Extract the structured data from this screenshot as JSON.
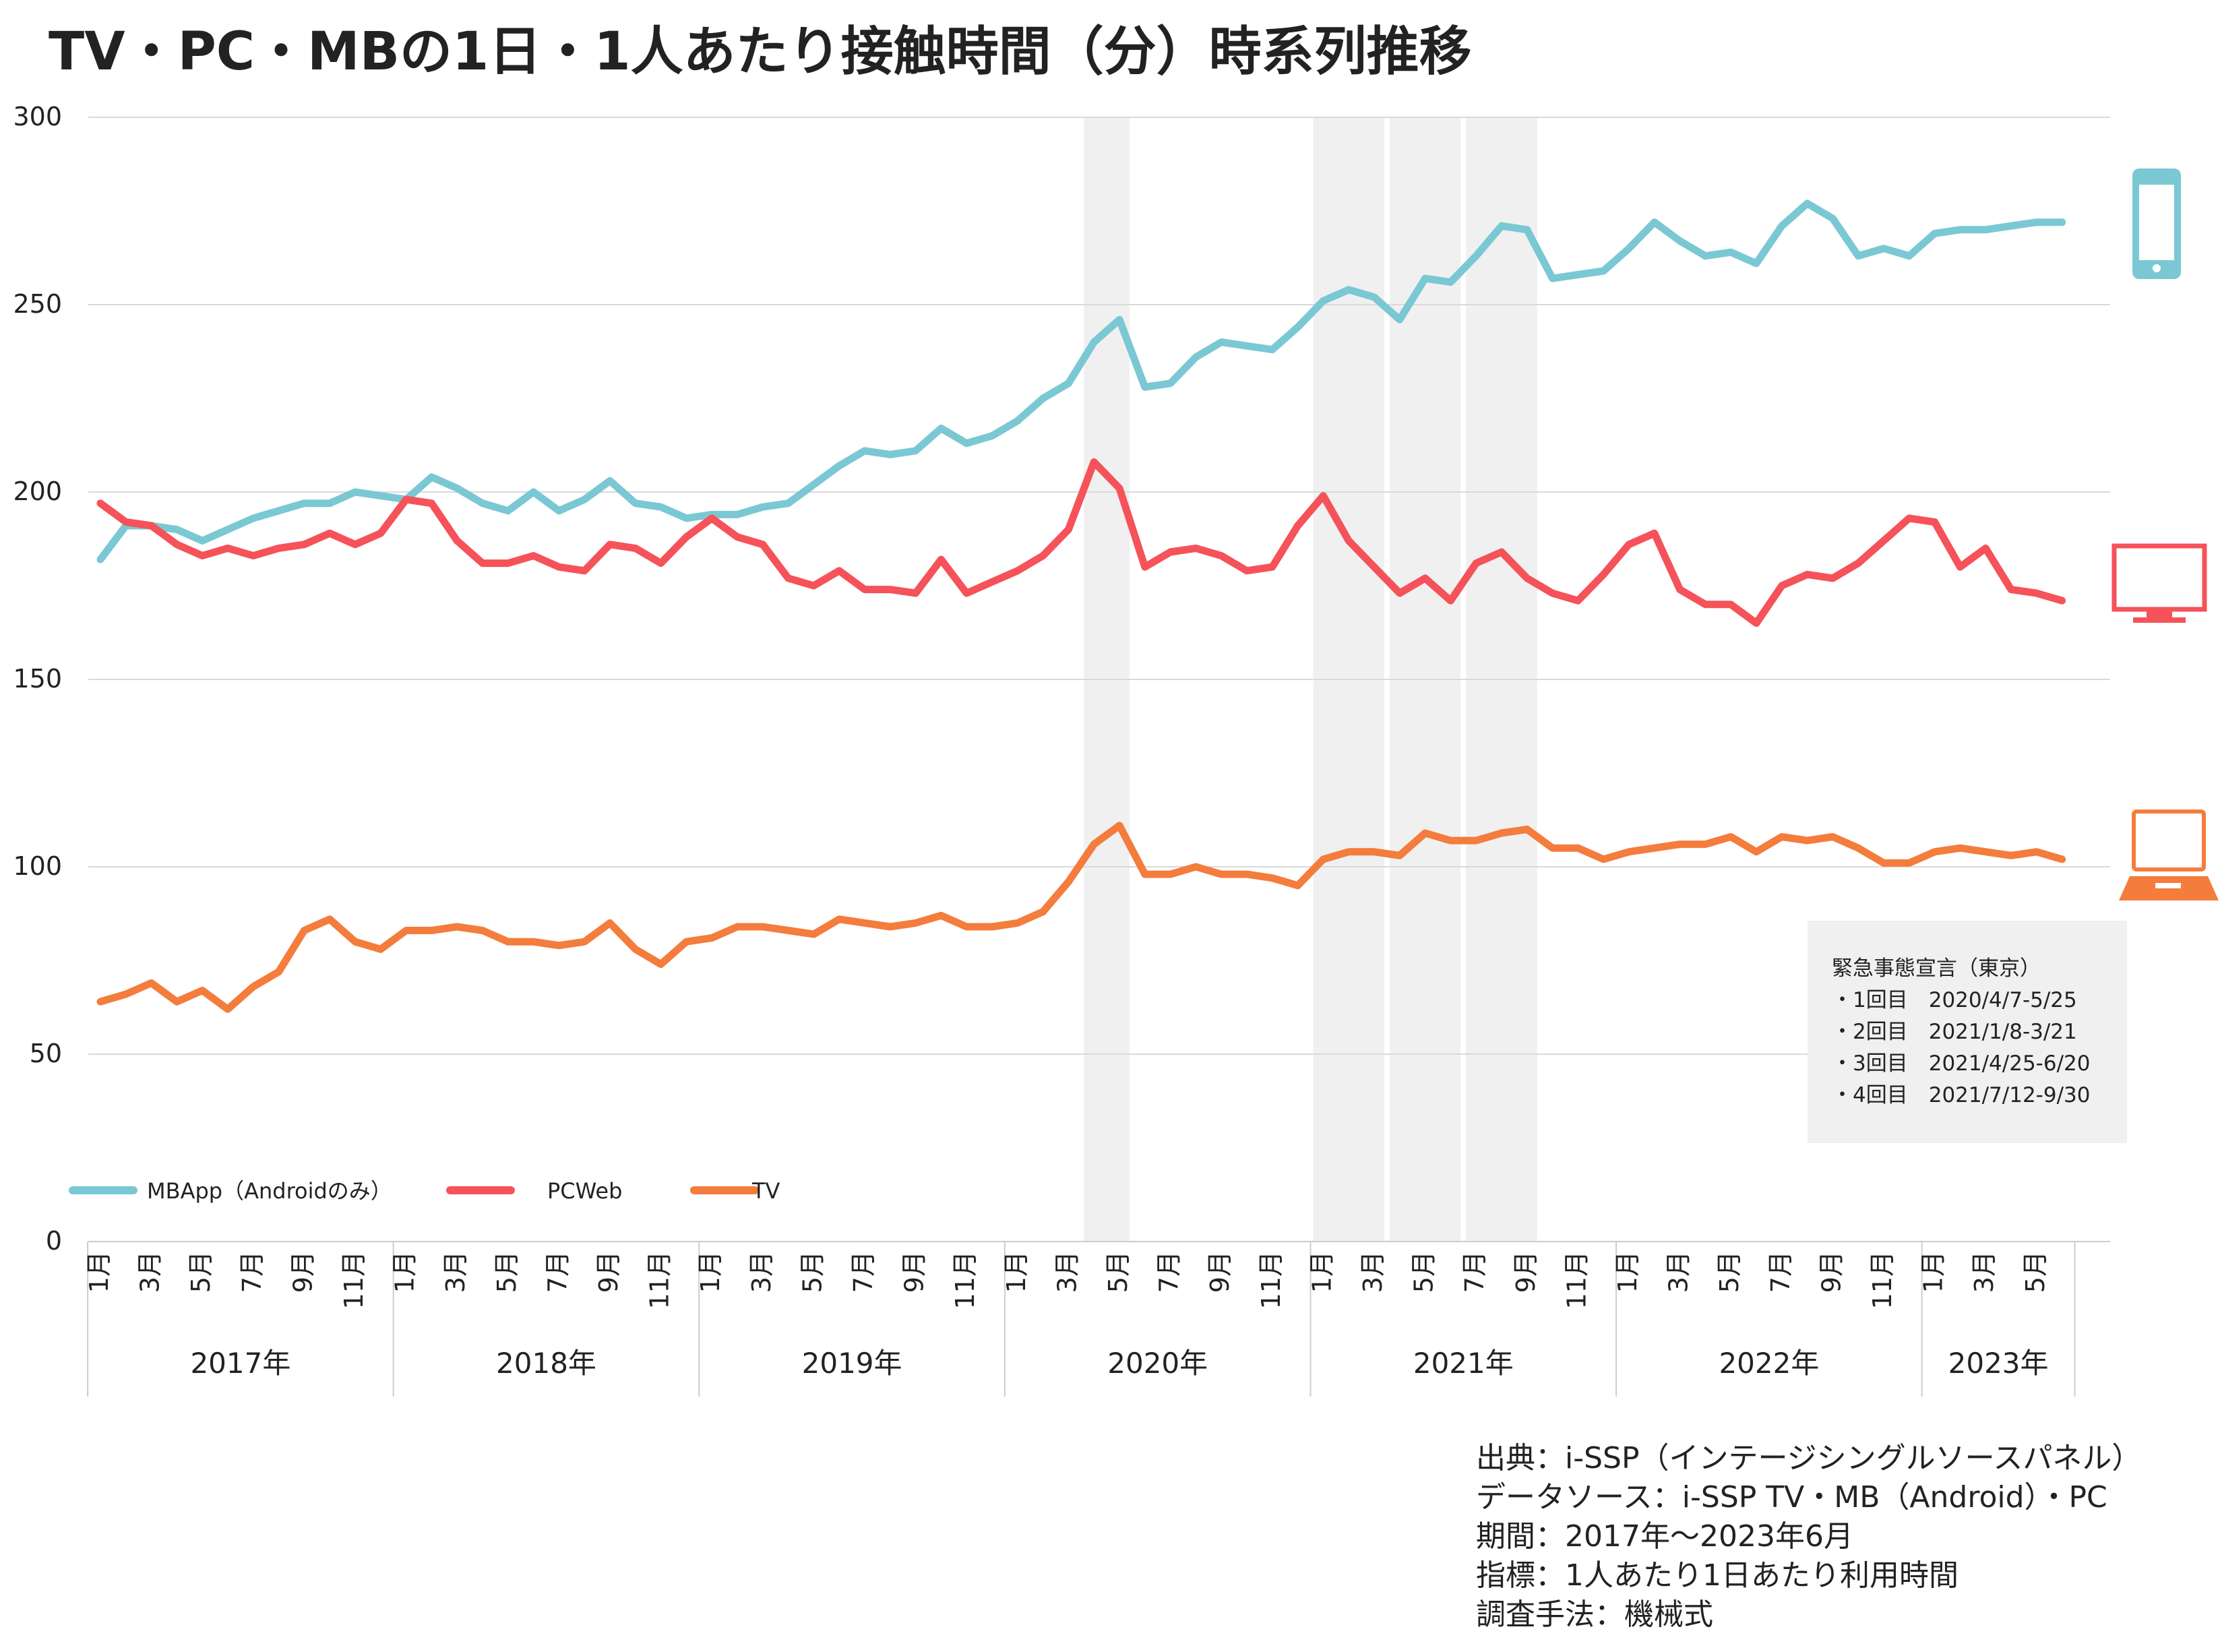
{
  "title": "TV・PC・MBの1日・1人あたり接触時間（分）時系列推移",
  "colors": {
    "mb": "#7ac8d4",
    "pc": "#f5525a",
    "tv": "#f47c3c",
    "shade": "#f0f0f0",
    "grid": "#d9d9d9"
  },
  "icons": {
    "mb": "smartphone-icon",
    "pc": "desktop-monitor-icon",
    "tv": "laptop-icon"
  },
  "emergency": {
    "title": "緊急事態宣言（東京）",
    "items": [
      "・1回目　2020/4/7-5/25",
      "・2回目　2021/1/8-3/21",
      "・3回目　2021/4/25-6/20",
      "・4回目　2021/7/12-9/30"
    ]
  },
  "source_notes": [
    "出典：i-SSP（インテージシングルソースパネル）",
    "データソース：i-SSP  TV・MB（Android）・PC",
    "期間：2017年～2023年6月",
    "指標：1人あたり1日あたり利用時間",
    "調査手法：機械式"
  ],
  "chart_data": {
    "type": "line",
    "ylim": [
      0,
      300
    ],
    "yticks": [
      0,
      50,
      100,
      150,
      200,
      250,
      300
    ],
    "grid": true,
    "legend_position": "bottom-left",
    "month_labels": [
      "1月",
      "",
      "3月",
      "",
      "5月",
      "",
      "7月",
      "",
      "9月",
      "",
      "11月",
      ""
    ],
    "years": [
      {
        "label": "2017年",
        "months": 12
      },
      {
        "label": "2018年",
        "months": 12
      },
      {
        "label": "2019年",
        "months": 12
      },
      {
        "label": "2020年",
        "months": 12
      },
      {
        "label": "2021年",
        "months": 12
      },
      {
        "label": "2022年",
        "months": 12
      },
      {
        "label": "2023年",
        "months": 6
      }
    ],
    "shaded_periods": [
      {
        "start": "2020-04",
        "end": "2020-05"
      },
      {
        "start": "2021-01",
        "end": "2021-03"
      },
      {
        "start": "2021-04",
        "end": "2021-06"
      },
      {
        "start": "2021-07",
        "end": "2021-09"
      }
    ],
    "series": [
      {
        "name": "MBApp（Androidのみ）",
        "key": "mb",
        "values": [
          182,
          191,
          191,
          190,
          187,
          190,
          193,
          195,
          197,
          197,
          200,
          199,
          198,
          204,
          201,
          197,
          195,
          200,
          195,
          198,
          203,
          197,
          196,
          193,
          194,
          194,
          196,
          197,
          202,
          207,
          211,
          210,
          211,
          217,
          213,
          215,
          219,
          225,
          229,
          240,
          246,
          228,
          229,
          236,
          240,
          239,
          238,
          244,
          251,
          254,
          252,
          246,
          257,
          256,
          263,
          271,
          270,
          257,
          258,
          259,
          265,
          272,
          267,
          263,
          264,
          261,
          271,
          277,
          273,
          263,
          265,
          263,
          269,
          270,
          270,
          271,
          272,
          272
        ]
      },
      {
        "name": "PCWeb",
        "key": "pc",
        "values": [
          197,
          192,
          191,
          186,
          183,
          185,
          183,
          185,
          186,
          189,
          186,
          189,
          198,
          197,
          187,
          181,
          181,
          183,
          180,
          179,
          186,
          185,
          181,
          188,
          193,
          188,
          186,
          177,
          175,
          179,
          174,
          174,
          173,
          182,
          173,
          176,
          179,
          183,
          190,
          208,
          201,
          180,
          184,
          185,
          183,
          179,
          180,
          191,
          199,
          187,
          180,
          173,
          177,
          171,
          181,
          184,
          177,
          173,
          171,
          178,
          186,
          189,
          174,
          170,
          170,
          165,
          175,
          178,
          177,
          181,
          187,
          193,
          192,
          180,
          185,
          174,
          173,
          171
        ]
      },
      {
        "name": "TV",
        "key": "tv",
        "values": [
          64,
          66,
          69,
          64,
          67,
          62,
          68,
          72,
          83,
          86,
          80,
          78,
          83,
          83,
          84,
          83,
          80,
          80,
          79,
          80,
          85,
          78,
          74,
          80,
          81,
          84,
          84,
          83,
          82,
          86,
          85,
          84,
          85,
          87,
          84,
          84,
          85,
          88,
          96,
          106,
          111,
          98,
          98,
          100,
          98,
          98,
          97,
          95,
          102,
          104,
          104,
          103,
          109,
          107,
          107,
          109,
          110,
          105,
          105,
          102,
          104,
          105,
          106,
          106,
          108,
          104,
          108,
          107,
          108,
          105,
          101,
          101,
          104,
          105,
          104,
          103,
          104,
          102
        ]
      }
    ]
  }
}
